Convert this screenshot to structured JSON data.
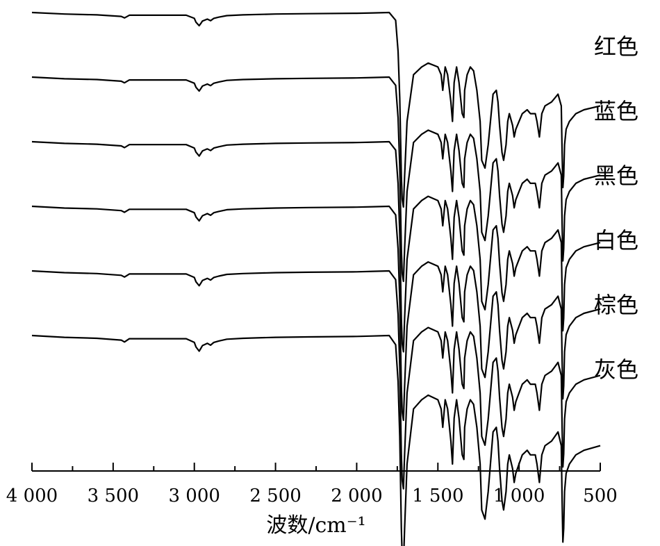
{
  "chart_data": {
    "type": "line",
    "xlabel": "波数/cm⁻¹",
    "xlim": [
      4000,
      500
    ],
    "x_reversed": true,
    "grid": false,
    "x_ticks": [
      4000,
      3500,
      3000,
      2500,
      2000,
      1500,
      1000,
      500
    ],
    "x_tick_labels": [
      "4 000",
      "3 500",
      "3 000",
      "2 500",
      "2 000",
      "1 500",
      "1 000",
      "500"
    ],
    "x_minor_ticks": [
      3750,
      3250,
      2750,
      2250,
      1750,
      1250,
      750
    ],
    "series_labels_inline": true,
    "spectrum_profile": {
      "x": [
        4000,
        3800,
        3600,
        3450,
        3430,
        3400,
        3200,
        3050,
        3000,
        2990,
        2970,
        2960,
        2950,
        2920,
        2900,
        2880,
        2850,
        2800,
        2700,
        2500,
        2300,
        2000,
        1900,
        1800,
        1760,
        1745,
        1735,
        1725,
        1720,
        1712,
        1705,
        1690,
        1650,
        1600,
        1560,
        1500,
        1480,
        1470,
        1455,
        1440,
        1420,
        1410,
        1400,
        1385,
        1370,
        1350,
        1340,
        1335,
        1320,
        1300,
        1280,
        1260,
        1240,
        1230,
        1210,
        1190,
        1160,
        1140,
        1130,
        1120,
        1105,
        1095,
        1080,
        1070,
        1060,
        1040,
        1030,
        1020,
        1000,
        980,
        950,
        930,
        900,
        890,
        875,
        860,
        840,
        800,
        780,
        760,
        740,
        735,
        730,
        725,
        720,
        710,
        690,
        650,
        600,
        500
      ],
      "transmittance": [
        100,
        99.6,
        99.4,
        99.0,
        98.6,
        99.3,
        99.3,
        99.3,
        98.5,
        97.5,
        96.6,
        97.2,
        97.8,
        98.3,
        97.9,
        98.5,
        98.8,
        99.2,
        99.4,
        99.6,
        99.7,
        99.8,
        99.9,
        100,
        98,
        90,
        78,
        58,
        52,
        50,
        58,
        72,
        84,
        86,
        87,
        86,
        84,
        80,
        86,
        84,
        77,
        72,
        82,
        86,
        82,
        74,
        73,
        80,
        84,
        86,
        85,
        80,
        72,
        62,
        60,
        66,
        79,
        80,
        77,
        71,
        64,
        62,
        66,
        72,
        74,
        71,
        68,
        70,
        72,
        74,
        75,
        74,
        74,
        72,
        68,
        74,
        76,
        77,
        78,
        79,
        76,
        64,
        55,
        58,
        66,
        70,
        72,
        74,
        75,
        76
      ]
    },
    "series": [
      {
        "name": "红色",
        "peak_depth": 1.0
      },
      {
        "name": "蓝色",
        "peak_depth": 1.05
      },
      {
        "name": "黑色",
        "peak_depth": 1.08
      },
      {
        "name": "白色",
        "peak_depth": 1.1
      },
      {
        "name": "棕色",
        "peak_depth": 1.12
      },
      {
        "name": "灰色",
        "peak_depth": 1.18
      }
    ]
  }
}
